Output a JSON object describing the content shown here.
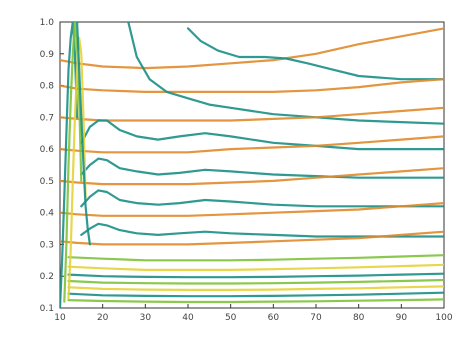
{
  "chart_data": {
    "type": "line",
    "title": "",
    "xlabel": "",
    "ylabel": "",
    "xlim": [
      10,
      100
    ],
    "ylim": [
      0.1,
      1.0
    ],
    "xticks": [
      10,
      20,
      30,
      40,
      50,
      60,
      70,
      80,
      90,
      100
    ],
    "yticks": [
      0.1,
      0.2,
      0.3,
      0.4,
      0.5,
      0.6,
      0.7,
      0.8,
      0.9,
      1.0
    ],
    "ytick_labels": [
      "0.1",
      "0.2",
      "0.3",
      "0.4",
      "0.5",
      "0.6",
      "0.7",
      "0.8",
      "0.9",
      "1.0"
    ],
    "xtick_labels": [
      "10",
      "20",
      "30",
      "40",
      "50",
      "60",
      "70",
      "80",
      "90",
      "100"
    ],
    "grid": false,
    "legend": "none",
    "colors": {
      "orange": "#e08a2a",
      "teal": "#1a8f86",
      "green": "#7ec23a",
      "yellow": "#e6d23a"
    },
    "series": [
      {
        "color": "#e08a2a",
        "label": "",
        "x": [
          10,
          14,
          20,
          30,
          40,
          50,
          60,
          70,
          80,
          90,
          100
        ],
        "y": [
          0.88,
          0.87,
          0.86,
          0.855,
          0.86,
          0.87,
          0.88,
          0.9,
          0.93,
          0.955,
          0.98
        ]
      },
      {
        "color": "#1a8f86",
        "label": "",
        "x": [
          40,
          43,
          47,
          52,
          58,
          63,
          68,
          74,
          80,
          90,
          100
        ],
        "y": [
          0.98,
          0.94,
          0.91,
          0.89,
          0.89,
          0.885,
          0.87,
          0.85,
          0.83,
          0.82,
          0.82
        ]
      },
      {
        "color": "#e08a2a",
        "label": "",
        "x": [
          10,
          14,
          20,
          30,
          40,
          50,
          60,
          70,
          80,
          90,
          100
        ],
        "y": [
          0.8,
          0.79,
          0.785,
          0.78,
          0.78,
          0.78,
          0.78,
          0.785,
          0.795,
          0.81,
          0.82
        ]
      },
      {
        "color": "#1a8f86",
        "label": "",
        "x": [
          26,
          28,
          31,
          35,
          40,
          45,
          50,
          55,
          60,
          70,
          80,
          90,
          100
        ],
        "y": [
          1.0,
          0.89,
          0.82,
          0.78,
          0.76,
          0.74,
          0.73,
          0.72,
          0.71,
          0.7,
          0.69,
          0.685,
          0.68
        ]
      },
      {
        "color": "#e08a2a",
        "label": "",
        "x": [
          10,
          14,
          20,
          30,
          40,
          50,
          60,
          70,
          80,
          90,
          100
        ],
        "y": [
          0.7,
          0.695,
          0.69,
          0.69,
          0.69,
          0.69,
          0.695,
          0.7,
          0.71,
          0.72,
          0.73
        ]
      },
      {
        "color": "#1a8f86",
        "label": "",
        "x": [
          15,
          17,
          19,
          21,
          24,
          28,
          33,
          38,
          44,
          50,
          60,
          70,
          80,
          90,
          100
        ],
        "y": [
          0.62,
          0.67,
          0.69,
          0.69,
          0.66,
          0.64,
          0.63,
          0.64,
          0.65,
          0.64,
          0.62,
          0.61,
          0.6,
          0.6,
          0.6
        ]
      },
      {
        "color": "#e08a2a",
        "label": "",
        "x": [
          10,
          14,
          20,
          30,
          40,
          50,
          60,
          70,
          80,
          90,
          100
        ],
        "y": [
          0.6,
          0.595,
          0.59,
          0.59,
          0.59,
          0.6,
          0.605,
          0.61,
          0.62,
          0.63,
          0.64
        ]
      },
      {
        "color": "#1a8f86",
        "label": "",
        "x": [
          15,
          17,
          19,
          21,
          24,
          28,
          33,
          38,
          44,
          50,
          60,
          70,
          80,
          90,
          100
        ],
        "y": [
          0.52,
          0.55,
          0.57,
          0.565,
          0.54,
          0.53,
          0.52,
          0.525,
          0.535,
          0.53,
          0.52,
          0.515,
          0.51,
          0.51,
          0.51
        ]
      },
      {
        "color": "#e08a2a",
        "label": "",
        "x": [
          10,
          14,
          20,
          30,
          40,
          50,
          60,
          70,
          80,
          90,
          100
        ],
        "y": [
          0.5,
          0.495,
          0.49,
          0.49,
          0.49,
          0.495,
          0.5,
          0.51,
          0.52,
          0.53,
          0.54
        ]
      },
      {
        "color": "#1a8f86",
        "label": "",
        "x": [
          15,
          17,
          19,
          21,
          24,
          28,
          33,
          38,
          44,
          50,
          60,
          70,
          80,
          90,
          100
        ],
        "y": [
          0.42,
          0.45,
          0.47,
          0.465,
          0.44,
          0.43,
          0.425,
          0.43,
          0.44,
          0.435,
          0.425,
          0.42,
          0.42,
          0.42,
          0.42
        ]
      },
      {
        "color": "#e08a2a",
        "label": "",
        "x": [
          10,
          14,
          20,
          30,
          40,
          50,
          60,
          70,
          80,
          90,
          100
        ],
        "y": [
          0.4,
          0.395,
          0.39,
          0.39,
          0.39,
          0.395,
          0.4,
          0.405,
          0.41,
          0.42,
          0.43
        ]
      },
      {
        "color": "#1a8f86",
        "label": "",
        "x": [
          15,
          17,
          19,
          21,
          24,
          28,
          33,
          38,
          44,
          50,
          60,
          70,
          80,
          90,
          100
        ],
        "y": [
          0.33,
          0.35,
          0.365,
          0.36,
          0.345,
          0.335,
          0.33,
          0.335,
          0.34,
          0.335,
          0.33,
          0.325,
          0.325,
          0.325,
          0.325
        ]
      },
      {
        "color": "#e08a2a",
        "label": "",
        "x": [
          10,
          14,
          20,
          30,
          40,
          50,
          60,
          70,
          80,
          90,
          100
        ],
        "y": [
          0.31,
          0.305,
          0.3,
          0.3,
          0.3,
          0.305,
          0.31,
          0.315,
          0.32,
          0.33,
          0.34
        ]
      },
      {
        "color": "#7ec23a",
        "label": "",
        "x": [
          12,
          20,
          30,
          40,
          50,
          60,
          70,
          80,
          90,
          100
        ],
        "y": [
          0.26,
          0.255,
          0.25,
          0.25,
          0.25,
          0.252,
          0.255,
          0.258,
          0.262,
          0.266
        ]
      },
      {
        "color": "#e6d23a",
        "label": "",
        "x": [
          12,
          20,
          30,
          40,
          50,
          60,
          70,
          80,
          90,
          100
        ],
        "y": [
          0.23,
          0.225,
          0.22,
          0.22,
          0.22,
          0.222,
          0.225,
          0.228,
          0.232,
          0.236
        ]
      },
      {
        "color": "#1a8f86",
        "label": "",
        "x": [
          12,
          20,
          30,
          40,
          50,
          60,
          70,
          80,
          90,
          100
        ],
        "y": [
          0.205,
          0.2,
          0.198,
          0.197,
          0.197,
          0.198,
          0.2,
          0.202,
          0.205,
          0.208
        ]
      },
      {
        "color": "#7ec23a",
        "label": "",
        "x": [
          12,
          20,
          30,
          40,
          50,
          60,
          70,
          80,
          90,
          100
        ],
        "y": [
          0.185,
          0.18,
          0.178,
          0.177,
          0.177,
          0.178,
          0.18,
          0.182,
          0.185,
          0.188
        ]
      },
      {
        "color": "#e6d23a",
        "label": "",
        "x": [
          12,
          20,
          30,
          40,
          50,
          60,
          70,
          80,
          90,
          100
        ],
        "y": [
          0.165,
          0.16,
          0.158,
          0.157,
          0.157,
          0.158,
          0.16,
          0.162,
          0.165,
          0.168
        ]
      },
      {
        "color": "#1a8f86",
        "label": "",
        "x": [
          12,
          20,
          30,
          40,
          50,
          60,
          70,
          80,
          90,
          100
        ],
        "y": [
          0.145,
          0.14,
          0.138,
          0.137,
          0.137,
          0.138,
          0.14,
          0.142,
          0.145,
          0.148
        ]
      },
      {
        "color": "#7ec23a",
        "label": "",
        "x": [
          12,
          20,
          30,
          40,
          50,
          60,
          70,
          80,
          90,
          100
        ],
        "y": [
          0.125,
          0.122,
          0.12,
          0.119,
          0.119,
          0.12,
          0.121,
          0.123,
          0.125,
          0.127
        ]
      },
      {
        "color": "#1a8f86",
        "label": "",
        "x": [
          10,
          10.5,
          11,
          11.5,
          12,
          12.5,
          13,
          13.5,
          14
        ],
        "y": [
          0.1,
          0.25,
          0.45,
          0.65,
          0.85,
          0.95,
          1.0,
          0.9,
          0.7
        ]
      },
      {
        "color": "#7ec23a",
        "label": "",
        "x": [
          11,
          11.5,
          12,
          12.5,
          13,
          13.5,
          14,
          14.5,
          15
        ],
        "y": [
          0.12,
          0.3,
          0.55,
          0.75,
          0.9,
          1.0,
          0.92,
          0.75,
          0.5
        ]
      },
      {
        "color": "#e6d23a",
        "label": "",
        "x": [
          12,
          12.5,
          13,
          13.5,
          14,
          14.5,
          15,
          15.5,
          16
        ],
        "y": [
          0.13,
          0.28,
          0.5,
          0.7,
          0.85,
          0.95,
          0.9,
          0.7,
          0.45
        ]
      },
      {
        "color": "#1a8f86",
        "label": "",
        "x": [
          14,
          14.5,
          15,
          15.5,
          16,
          16.5,
          17
        ],
        "y": [
          1.0,
          0.85,
          0.7,
          0.55,
          0.42,
          0.35,
          0.3
        ]
      }
    ]
  }
}
